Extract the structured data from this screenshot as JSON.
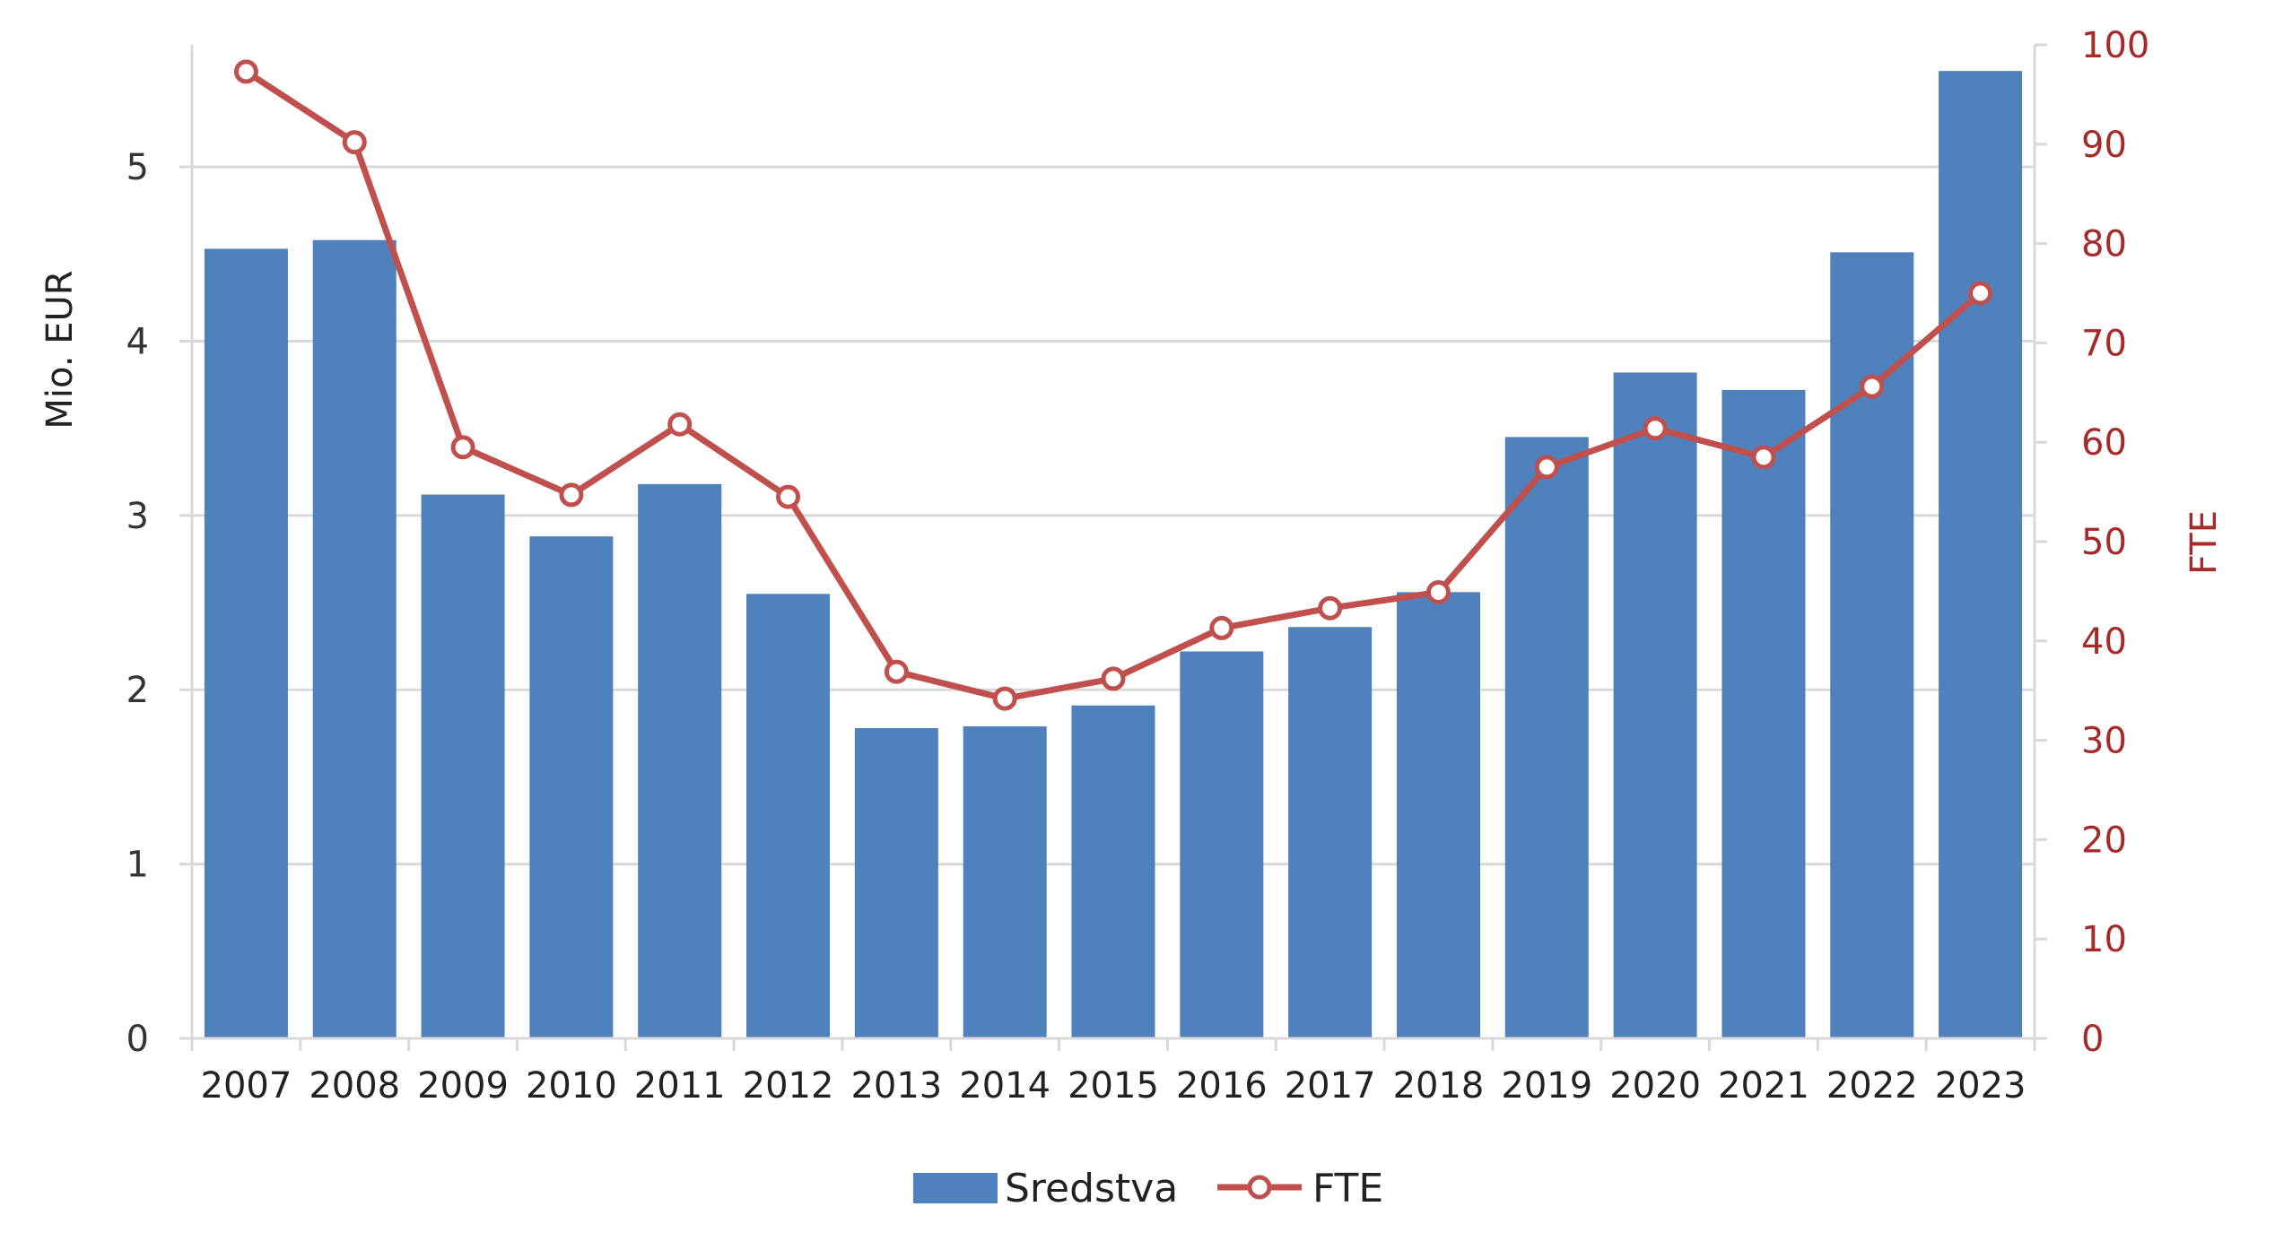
{
  "chart_data": {
    "type": "bar",
    "categories": [
      "2007",
      "2008",
      "2009",
      "2010",
      "2011",
      "2012",
      "2013",
      "2014",
      "2015",
      "2016",
      "2017",
      "2018",
      "2019",
      "2020",
      "2021",
      "2022",
      "2023"
    ],
    "series": [
      {
        "name": "Sredstva",
        "type": "bar",
        "axis": "left",
        "color": "#4F81BD",
        "values": [
          4.53,
          4.58,
          3.12,
          2.88,
          3.18,
          2.55,
          1.78,
          1.79,
          1.91,
          2.22,
          2.36,
          2.56,
          3.45,
          3.82,
          3.72,
          4.51,
          5.55
        ]
      },
      {
        "name": "FTE",
        "type": "line",
        "axis": "right",
        "color": "#C0504D",
        "values": [
          97.3,
          90.2,
          59.5,
          54.7,
          61.8,
          54.5,
          36.9,
          34.2,
          36.2,
          41.3,
          43.3,
          44.9,
          57.5,
          61.4,
          58.5,
          65.6,
          75.0
        ]
      }
    ],
    "ylabel": "Mio. EUR",
    "y2label": "FTE",
    "ylim": [
      0,
      5.7
    ],
    "y2lim": [
      0,
      100
    ],
    "yticks": [
      0,
      1,
      2,
      3,
      4,
      5
    ],
    "y2ticks": [
      0,
      10,
      20,
      30,
      40,
      50,
      60,
      70,
      80,
      90,
      100
    ],
    "grid": true,
    "legend": "bottom-center",
    "colors": {
      "bar": "#4F81BD",
      "line": "#C0504D",
      "right_axis_text": "#A52A2A",
      "grid": "#D9D9D9"
    }
  }
}
